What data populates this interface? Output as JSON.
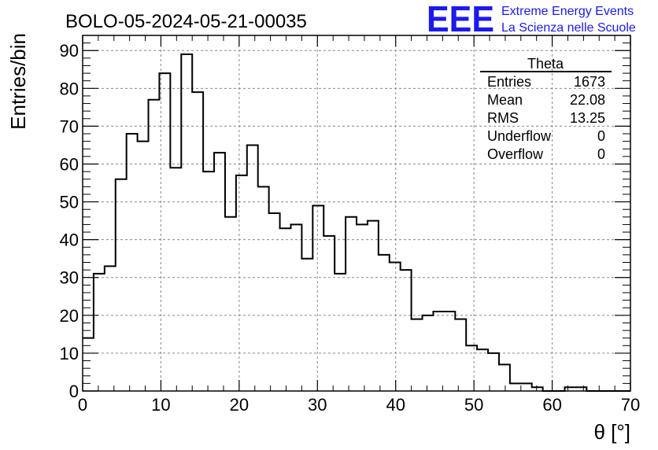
{
  "title": "BOLO-05-2024-05-21-00035",
  "logo": {
    "mark": "EEE",
    "line1": "Extreme Energy Events",
    "line2": "La Scienza nelle Scuole",
    "color": "#1a1aee"
  },
  "stats_box": {
    "header": "Theta",
    "rows": [
      {
        "label": "Entries",
        "value": "1673"
      },
      {
        "label": "Mean",
        "value": "22.08"
      },
      {
        "label": "RMS",
        "value": "13.25"
      },
      {
        "label": "Underflow",
        "value": "0"
      },
      {
        "label": "Overflow",
        "value": "0"
      }
    ]
  },
  "chart_data": {
    "type": "histogram",
    "xlabel": "θ [°]",
    "ylabel": "Entries/bin",
    "xlim": [
      0,
      70
    ],
    "ylim": [
      0,
      94
    ],
    "grid": true,
    "bin_width": 1.4,
    "x_ticks": [
      0,
      10,
      20,
      30,
      40,
      50,
      60,
      70
    ],
    "y_ticks": [
      0,
      10,
      20,
      30,
      40,
      50,
      60,
      70,
      80,
      90
    ],
    "values": [
      14,
      31,
      33,
      56,
      68,
      66,
      77,
      84,
      59,
      89,
      79,
      58,
      63,
      46,
      57,
      65,
      54,
      47,
      43,
      44,
      35,
      49,
      41,
      31,
      46,
      44,
      45,
      36,
      34,
      32,
      19,
      20,
      21,
      21,
      19,
      12,
      11,
      10,
      7,
      2,
      2,
      1,
      0,
      0,
      1,
      1,
      0,
      0,
      0,
      0
    ]
  }
}
